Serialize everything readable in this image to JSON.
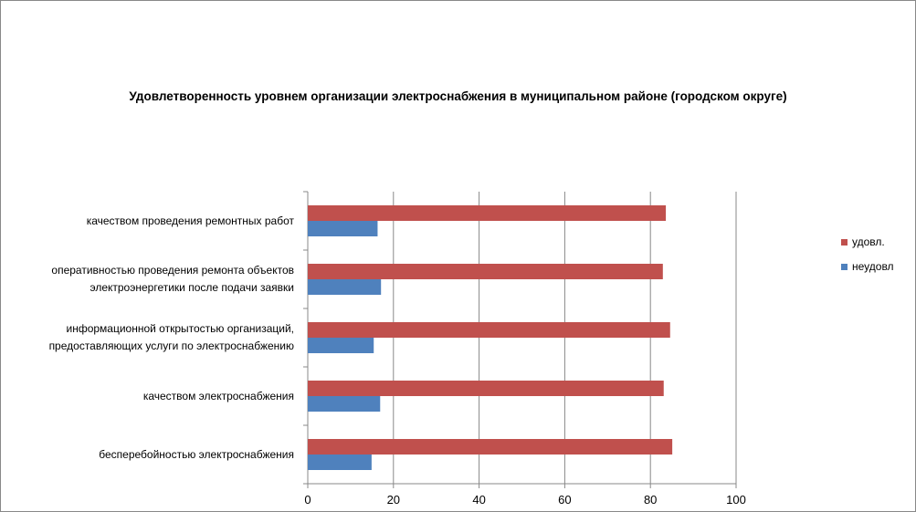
{
  "chart_data": {
    "type": "bar",
    "orientation": "horizontal",
    "title": "Удовлетворенность уровнем организации электроснабжения в муниципальном районе (городском округе)",
    "xlabel": "",
    "ylabel": "",
    "xlim": [
      0,
      100
    ],
    "x_ticks": [
      "0",
      "20",
      "40",
      "60",
      "80",
      "100"
    ],
    "grid": true,
    "legend_position": "right",
    "categories": [
      [
        "качеством  проведения  ремонтных  работ"
      ],
      [
        "оперативностью  проведения  ремонта  объектов",
        "электроэнергетики  после подачи заявки"
      ],
      [
        "информационной  открытостью  организаций,",
        "предоставляющих услуги по электроснабжению"
      ],
      [
        "качеством  электроснабжения"
      ],
      [
        "бесперебойностью  электроснабжения"
      ]
    ],
    "series": [
      {
        "name": "удовл.",
        "color": "#C0504D",
        "values": [
          83.6,
          82.9,
          84.6,
          83.1,
          85.1
        ]
      },
      {
        "name": "неудовл",
        "color": "#4F81BD",
        "values": [
          16.3,
          17.1,
          15.4,
          16.9,
          14.9
        ]
      }
    ]
  }
}
